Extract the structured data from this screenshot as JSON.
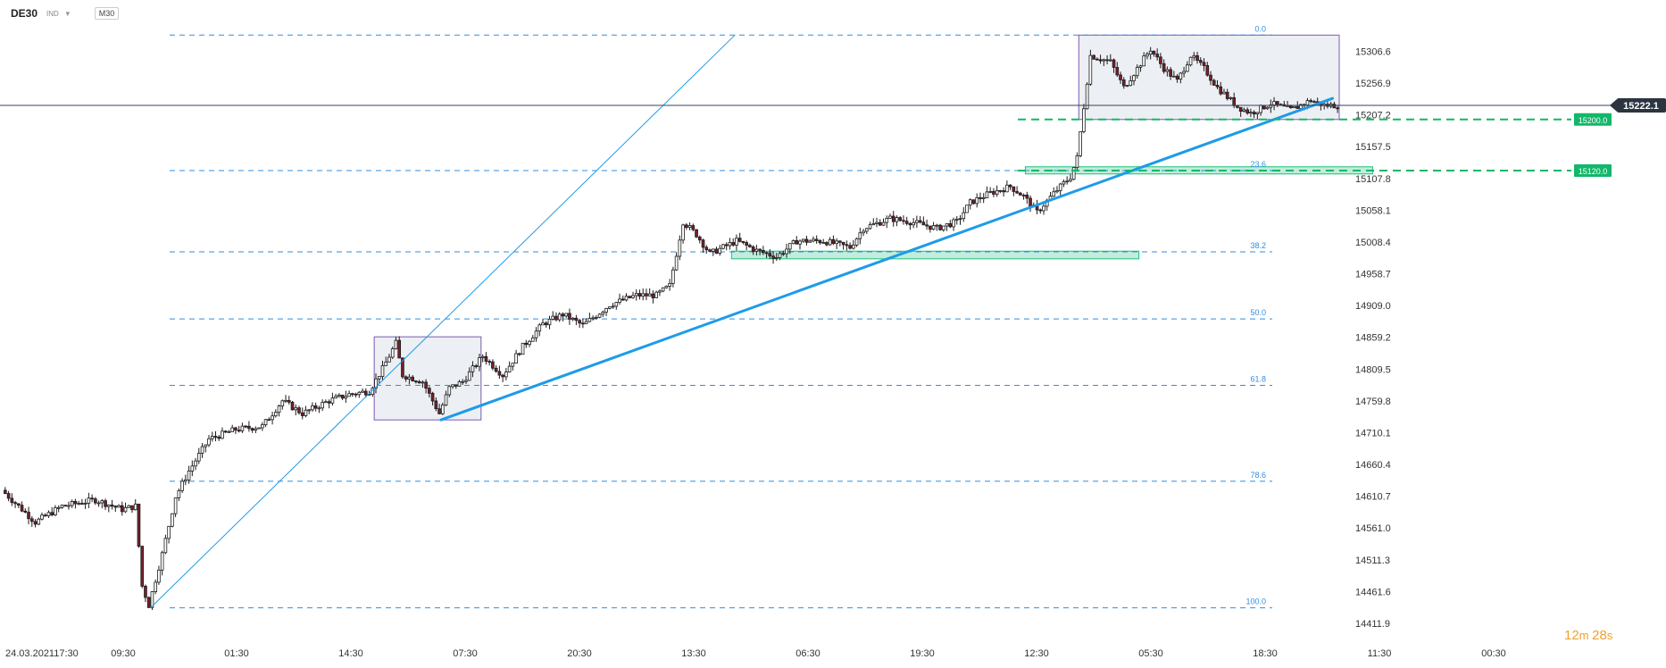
{
  "toolbar": {
    "symbol": "DE30",
    "market": "IND",
    "timeframe": "M30"
  },
  "countdown": {
    "min": "12",
    "min_unit": "m",
    "sec": "28",
    "sec_unit": "s"
  },
  "colors": {
    "up": "#ffffff",
    "down": "#7a1f2b",
    "wick": "#1b1b1b",
    "fib": "#2f8fe0",
    "trend": "#1e9be8",
    "zone": "#1fbf7a",
    "box": "#7a5cb0",
    "price_tag": "#2c3440",
    "level_tag": "#12b76a"
  },
  "chart_data": {
    "type": "candlestick",
    "instrument": "DE30",
    "timeframe": "M30",
    "ylim": [
      14395,
      15345
    ],
    "y_ticks": [
      15306.6,
      15256.9,
      15207.2,
      15157.5,
      15107.8,
      15058.1,
      15008.4,
      14958.7,
      14909.0,
      14859.2,
      14809.5,
      14759.8,
      14710.1,
      14660.4,
      14610.7,
      14561.0,
      14511.3,
      14461.6,
      14411.9
    ],
    "x_ticks": [
      "24.03.2021",
      "17:30",
      "09:30",
      "01:30",
      "14:30",
      "07:30",
      "20:30",
      "13:30",
      "06:30",
      "19:30",
      "12:30",
      "05:30",
      "18:30",
      "11:30",
      "00:30"
    ],
    "current_price": 15222.1,
    "fib_levels": [
      {
        "label": "0.0",
        "price": 15332
      },
      {
        "label": "23.6",
        "price": 15120
      },
      {
        "label": "38.2",
        "price": 14993
      },
      {
        "label": "50.0",
        "price": 14888
      },
      {
        "label": "61.8",
        "price": 14784
      },
      {
        "label": "78.6",
        "price": 14634
      },
      {
        "label": "100.0",
        "price": 14436
      }
    ],
    "levels": [
      {
        "label": "15200.0",
        "price": 15200
      },
      {
        "label": "15120.0",
        "price": 15120
      }
    ],
    "zones": [
      {
        "start_bar": 306,
        "end_bar": 410,
        "low": 15116,
        "high": 15126
      },
      {
        "start_bar": 218,
        "end_bar": 340,
        "low": 14982,
        "high": 14994
      }
    ],
    "boxes": [
      {
        "start_bar": 111,
        "end_bar": 143,
        "low": 14730,
        "high": 14860
      },
      {
        "start_bar": 322,
        "end_bar": 400,
        "low": 15200,
        "high": 15332
      }
    ],
    "trendlines": [
      {
        "bar1": 44,
        "price1": 14436,
        "bar2": 219,
        "price2": 15332,
        "width": 1
      },
      {
        "bar1": 131,
        "price1": 14730,
        "bar2": 398,
        "price2": 15233,
        "width": 3
      }
    ],
    "bar_count": 400,
    "keypoints": [
      [
        0,
        14620
      ],
      [
        4,
        14600
      ],
      [
        10,
        14570
      ],
      [
        18,
        14595
      ],
      [
        28,
        14605
      ],
      [
        36,
        14590
      ],
      [
        40,
        14595
      ],
      [
        42,
        14470
      ],
      [
        44,
        14440
      ],
      [
        48,
        14520
      ],
      [
        52,
        14610
      ],
      [
        56,
        14650
      ],
      [
        62,
        14700
      ],
      [
        70,
        14715
      ],
      [
        78,
        14720
      ],
      [
        84,
        14760
      ],
      [
        90,
        14740
      ],
      [
        98,
        14760
      ],
      [
        104,
        14770
      ],
      [
        110,
        14775
      ],
      [
        114,
        14810
      ],
      [
        118,
        14850
      ],
      [
        120,
        14800
      ],
      [
        126,
        14790
      ],
      [
        131,
        14740
      ],
      [
        134,
        14780
      ],
      [
        138,
        14790
      ],
      [
        144,
        14830
      ],
      [
        150,
        14800
      ],
      [
        156,
        14845
      ],
      [
        162,
        14880
      ],
      [
        168,
        14895
      ],
      [
        174,
        14878
      ],
      [
        182,
        14910
      ],
      [
        190,
        14925
      ],
      [
        196,
        14925
      ],
      [
        200,
        14940
      ],
      [
        204,
        15040
      ],
      [
        208,
        15020
      ],
      [
        212,
        14990
      ],
      [
        220,
        15010
      ],
      [
        226,
        14995
      ],
      [
        232,
        14985
      ],
      [
        238,
        15010
      ],
      [
        246,
        15010
      ],
      [
        254,
        15000
      ],
      [
        258,
        15030
      ],
      [
        266,
        15045
      ],
      [
        272,
        15040
      ],
      [
        280,
        15030
      ],
      [
        286,
        15040
      ],
      [
        290,
        15070
      ],
      [
        296,
        15085
      ],
      [
        302,
        15095
      ],
      [
        306,
        15080
      ],
      [
        310,
        15055
      ],
      [
        316,
        15090
      ],
      [
        320,
        15110
      ],
      [
        322,
        15140
      ],
      [
        326,
        15300
      ],
      [
        332,
        15290
      ],
      [
        336,
        15250
      ],
      [
        340,
        15280
      ],
      [
        344,
        15310
      ],
      [
        348,
        15280
      ],
      [
        352,
        15260
      ],
      [
        356,
        15300
      ],
      [
        360,
        15280
      ],
      [
        364,
        15250
      ],
      [
        370,
        15220
      ],
      [
        374,
        15210
      ],
      [
        380,
        15225
      ],
      [
        386,
        15215
      ],
      [
        392,
        15230
      ],
      [
        396,
        15222
      ],
      [
        400,
        15222
      ]
    ]
  }
}
